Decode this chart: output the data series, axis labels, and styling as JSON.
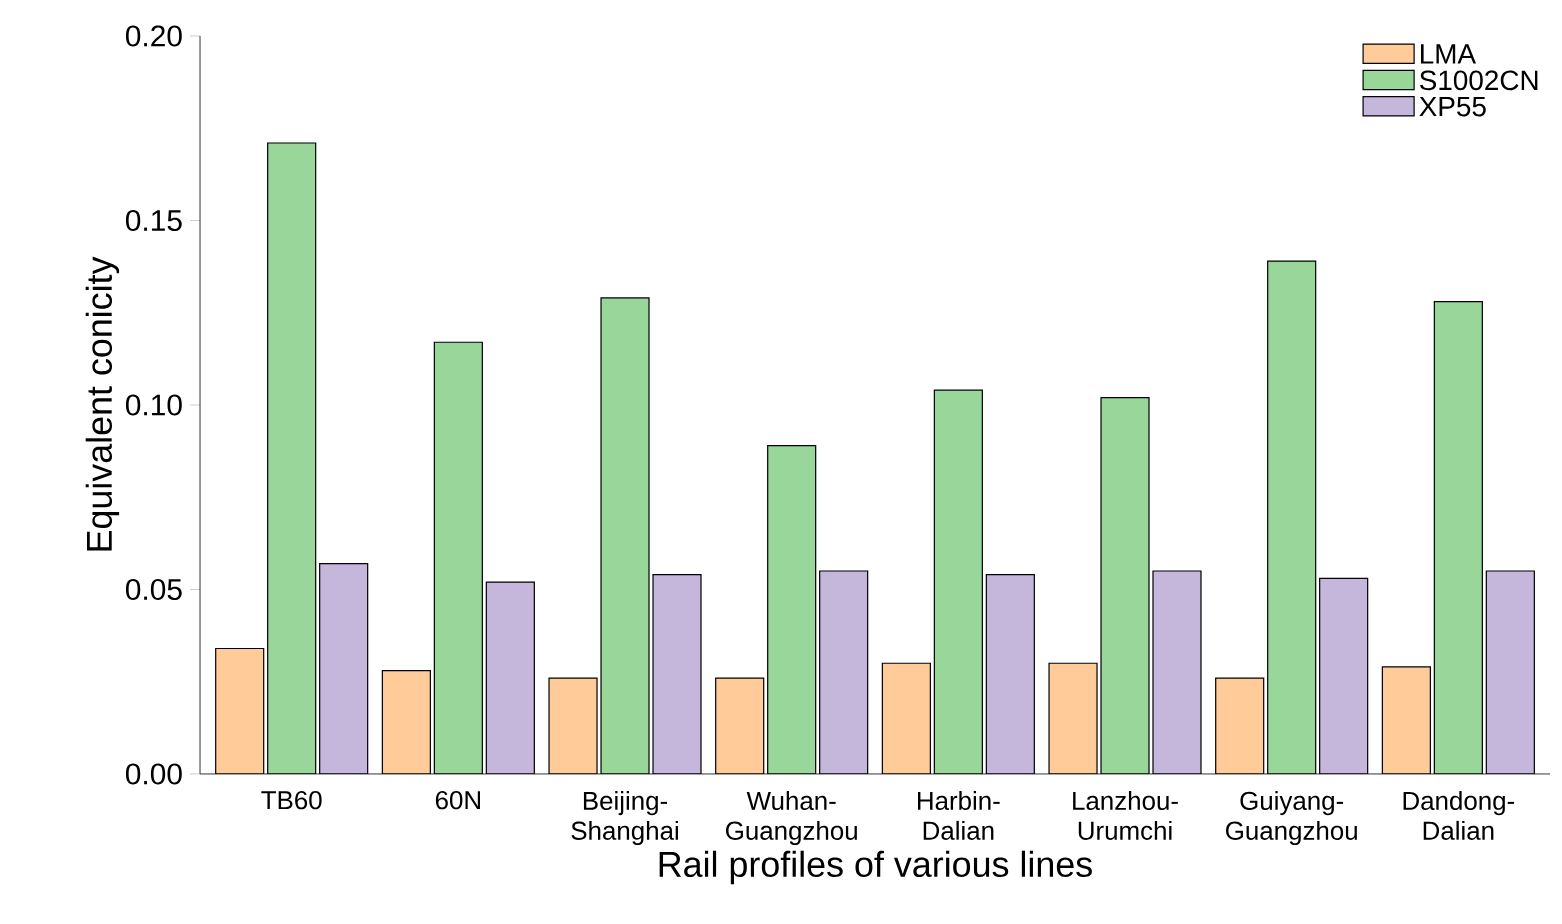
{
  "chart_data": {
    "type": "bar",
    "xlabel": "Rail profiles of various lines",
    "ylabel": "Equivalent conicity",
    "categories": [
      "TB60",
      "60N",
      "Beijing-Shanghai",
      "Wuhan-Guangzhou",
      "Harbin-Dalian",
      "Lanzhou-Urumchi",
      "Guiyang-Guangzhou",
      "Dandong-Dalian"
    ],
    "series": [
      {
        "name": "LMA",
        "color": "#ffcc99",
        "values": [
          0.034,
          0.028,
          0.026,
          0.026,
          0.03,
          0.03,
          0.026,
          0.029
        ]
      },
      {
        "name": "S1002CN",
        "color": "#99d699",
        "values": [
          0.171,
          0.117,
          0.129,
          0.089,
          0.104,
          0.102,
          0.139,
          0.128
        ]
      },
      {
        "name": "XP55",
        "color": "#c5b6dc",
        "values": [
          0.057,
          0.052,
          0.054,
          0.055,
          0.054,
          0.055,
          0.053,
          0.055
        ]
      }
    ],
    "ylim": [
      0,
      0.2
    ],
    "yticks": [
      {
        "value": 0,
        "label": "0.00"
      },
      {
        "value": 0.05,
        "label": "0.05"
      },
      {
        "value": 0.1,
        "label": "0.10"
      },
      {
        "value": 0.15,
        "label": "0.15"
      },
      {
        "value": 0.2,
        "label": "0.20"
      }
    ],
    "grid": false,
    "legend": "top right"
  }
}
